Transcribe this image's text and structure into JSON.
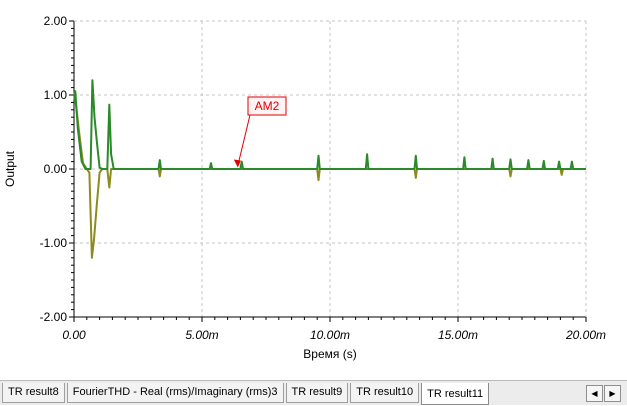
{
  "chart_data": {
    "type": "line",
    "title": "",
    "xlabel": "Время (s)",
    "ylabel": "Output",
    "xlim": [
      0,
      20
    ],
    "ylim": [
      -2,
      2
    ],
    "x_ticks": [
      {
        "value": 0,
        "label": "0.00"
      },
      {
        "value": 5,
        "label": "5.00m"
      },
      {
        "value": 10,
        "label": "10.00m"
      },
      {
        "value": 15,
        "label": "15.00m"
      },
      {
        "value": 20,
        "label": "20.00m"
      }
    ],
    "y_ticks": [
      {
        "value": 2,
        "label": "2.00"
      },
      {
        "value": 1,
        "label": "1.00"
      },
      {
        "value": 0,
        "label": "0.00"
      },
      {
        "value": -1,
        "label": "-1.00"
      },
      {
        "value": -2,
        "label": "-2.00"
      }
    ],
    "grid": true,
    "series": [
      {
        "color": "#8b8b1e",
        "x": [
          0,
          0.05,
          0.2,
          0.35,
          0.5,
          0.6,
          0.65,
          0.7,
          0.78,
          0.9,
          1.0,
          1.1,
          1.3,
          1.38,
          1.45,
          1.55,
          1.7,
          3.3,
          3.35,
          3.4,
          3.45,
          9.5,
          9.55,
          9.6,
          9.65,
          13.3,
          13.35,
          13.4,
          13.45,
          17.0,
          17.05,
          17.1,
          17.15,
          19.0,
          19.05,
          19.1,
          19.15,
          20.0
        ],
        "y": [
          1.05,
          0.95,
          0.5,
          0.08,
          0.0,
          -0.05,
          -0.6,
          -1.2,
          -0.95,
          -0.45,
          -0.05,
          0.0,
          0.0,
          -0.25,
          0.0,
          0.0,
          0.0,
          0.0,
          -0.1,
          0.0,
          0.0,
          0.0,
          -0.15,
          0.0,
          0.0,
          0.0,
          -0.12,
          0.0,
          0.0,
          0.0,
          -0.1,
          0.0,
          0.0,
          0.0,
          -0.08,
          0.0,
          0.0,
          0.0
        ]
      },
      {
        "color": "#2a8a2a",
        "x": [
          0,
          0.05,
          0.15,
          0.3,
          0.45,
          0.55,
          0.65,
          0.72,
          0.8,
          0.9,
          1.0,
          1.1,
          1.3,
          1.38,
          1.45,
          1.55,
          3.3,
          3.35,
          3.4,
          5.3,
          5.35,
          5.4,
          6.5,
          6.55,
          6.6,
          9.5,
          9.55,
          9.6,
          11.4,
          11.45,
          11.5,
          13.3,
          13.35,
          13.4,
          15.2,
          15.25,
          15.3,
          16.3,
          16.35,
          16.4,
          17.0,
          17.05,
          17.1,
          17.7,
          17.75,
          17.8,
          18.3,
          18.35,
          18.4,
          18.9,
          18.95,
          19.0,
          19.4,
          19.45,
          19.5,
          20.0
        ],
        "y": [
          0.9,
          1.05,
          0.55,
          0.1,
          0.0,
          0.0,
          0.0,
          1.2,
          0.7,
          0.35,
          0.02,
          0.0,
          0.0,
          0.87,
          0.2,
          0.0,
          0.0,
          0.12,
          0.0,
          0.0,
          0.08,
          0.0,
          0.0,
          0.1,
          0.0,
          0.0,
          0.18,
          0.0,
          0.0,
          0.2,
          0.0,
          0.0,
          0.18,
          0.0,
          0.0,
          0.16,
          0.0,
          0.0,
          0.14,
          0.0,
          0.0,
          0.13,
          0.0,
          0.0,
          0.12,
          0.0,
          0.0,
          0.11,
          0.0,
          0.0,
          0.1,
          0.0,
          0.0,
          0.1,
          0.0,
          0.0
        ]
      }
    ],
    "annotations": [
      {
        "text": "AM2",
        "x": 6.4,
        "y": 0.02,
        "color": "#e00000"
      }
    ]
  },
  "tabs": [
    {
      "label": "TR result8",
      "active": false
    },
    {
      "label": "FourierTHD - Real (rms)/Imaginary (rms)3",
      "active": false
    },
    {
      "label": "TR result9",
      "active": false
    },
    {
      "label": "TR result10",
      "active": false
    },
    {
      "label": "TR result11",
      "active": true
    }
  ],
  "scroll": {
    "left_glyph": "◀",
    "right_glyph": "▶"
  }
}
